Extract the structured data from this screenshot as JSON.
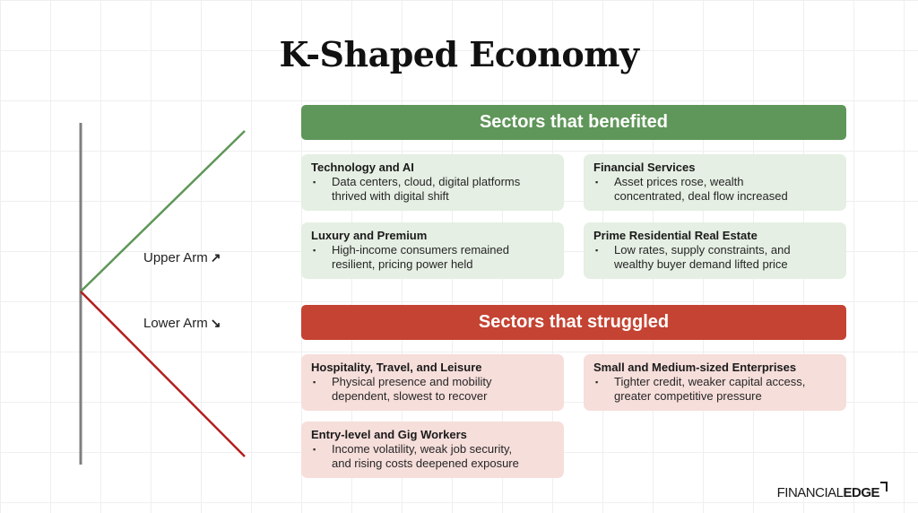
{
  "title": "K-Shaped Economy",
  "diagram": {
    "upper_arm_label": "Upper Arm",
    "upper_arm_arrow": "↗",
    "lower_arm_label": "Lower Arm",
    "lower_arm_arrow": "↘",
    "colors": {
      "stem": "#7f7f7f",
      "upper": "#5f9659",
      "lower": "#b21f1f"
    }
  },
  "benefited": {
    "heading": "Sectors that benefited",
    "color": "#5f9659",
    "cards": [
      {
        "title": "Technology and AI",
        "bullet": "▪",
        "lines": [
          "Data centers, cloud, digital platforms",
          "thrived with digital shift"
        ]
      },
      {
        "title": "Financial Services",
        "bullet": "▪",
        "lines": [
          "Asset prices rose, wealth",
          "concentrated, deal flow increased"
        ]
      },
      {
        "title": "Luxury and Premium",
        "bullet": "▪",
        "lines": [
          "High-income consumers remained",
          "resilient, pricing power held"
        ]
      },
      {
        "title": "Prime Residential Real Estate",
        "bullet": "▪",
        "lines": [
          "Low rates, supply constraints, and",
          "wealthy buyer demand lifted price"
        ]
      }
    ]
  },
  "struggled": {
    "heading": "Sectors that struggled",
    "color": "#c44332",
    "cards": [
      {
        "title": "Hospitality, Travel, and Leisure",
        "bullet": "▪",
        "lines": [
          "Physical presence and mobility",
          "dependent, slowest to recover"
        ]
      },
      {
        "title": "Small and Medium-sized Enterprises",
        "bullet": "▪",
        "lines": [
          "Tighter credit, weaker capital access,",
          "greater competitive pressure"
        ]
      },
      {
        "title": "Entry-level and Gig Workers",
        "bullet": "▪",
        "lines": [
          "Income volatility, weak job security,",
          "and rising costs deepened exposure"
        ]
      }
    ]
  },
  "brand": {
    "part1": "FINANCIAL",
    "part2": "EDGE"
  }
}
